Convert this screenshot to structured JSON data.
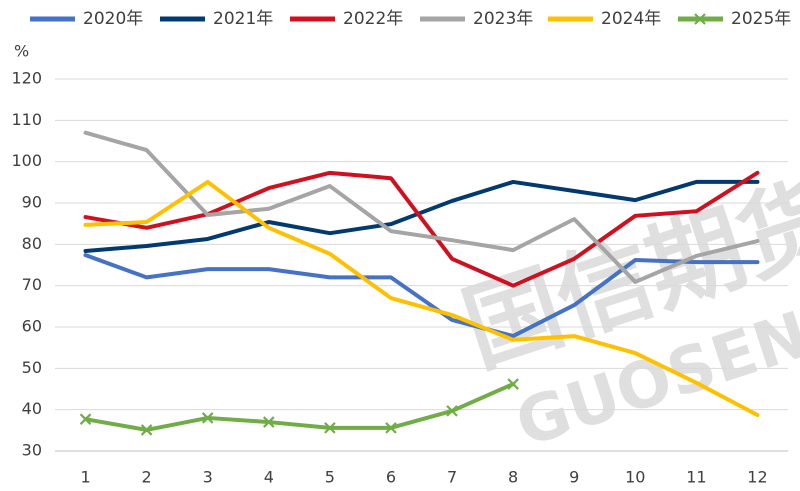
{
  "chart_data": {
    "type": "line",
    "y_label": "%",
    "watermark": [
      "国信期货",
      "GUOSEN"
    ],
    "categories": [
      "1",
      "2",
      "3",
      "4",
      "5",
      "6",
      "7",
      "8",
      "9",
      "10",
      "11",
      "12"
    ],
    "ylim": [
      30,
      120
    ],
    "yticks": [
      30,
      40,
      50,
      60,
      70,
      80,
      90,
      100,
      110,
      120
    ],
    "grid": true,
    "series": [
      {
        "name": "2020年",
        "color": "#4472c4",
        "values": [
          77.4,
          72,
          74,
          74,
          72,
          72,
          61.7,
          57.8,
          65.3,
          76.2,
          75.7,
          75.7
        ]
      },
      {
        "name": "2021年",
        "color": "#003a70",
        "values": [
          78.4,
          79.6,
          81.3,
          85.4,
          82.7,
          84.9,
          90.5,
          95.1,
          92.9,
          90.7,
          95.1,
          95.1
        ]
      },
      {
        "name": "2022年",
        "color": "#d0101e",
        "values": [
          86.6,
          84,
          87.3,
          93.6,
          97.3,
          96,
          76.5,
          70,
          76.5,
          86.9,
          88,
          97.3
        ]
      },
      {
        "name": "2023年",
        "color": "#a5a5a5",
        "values": [
          107,
          102.8,
          87.1,
          88.6,
          94.1,
          83.2,
          81,
          78.6,
          86.1,
          70.9,
          77.2,
          80.8
        ]
      },
      {
        "name": "2024年",
        "color": "#ffc000",
        "values": [
          84.7,
          85.4,
          95.1,
          84,
          77.7,
          67,
          62.9,
          56.9,
          57.8,
          53.7,
          46.5,
          38.7
        ]
      },
      {
        "name": "2025年",
        "color": "#70ad47",
        "marker": "x",
        "values": [
          37.7,
          35.1,
          38,
          37,
          35.6,
          35.6,
          39.7,
          46.2,
          null,
          null,
          null,
          null
        ]
      }
    ]
  }
}
